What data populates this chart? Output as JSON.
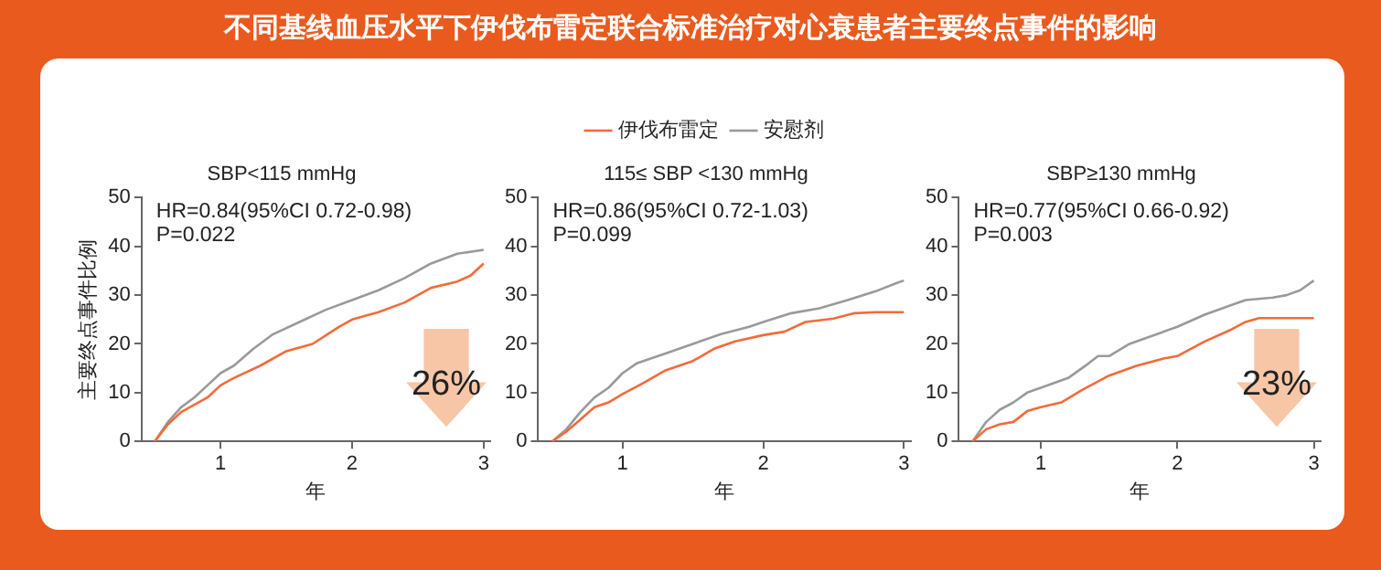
{
  "chart_data": [
    {
      "type": "line",
      "title": "不同基线血压水平下伊伐布雷定联合标准治疗对心衰患者主要终点事件的影响",
      "subtitle": "SBP<115 mmHg",
      "xlabel": "年",
      "ylabel": "主要终点事件比例",
      "xlim": [
        0.4,
        3.05
      ],
      "xticks": [
        1,
        2,
        3
      ],
      "ylim": [
        0,
        50
      ],
      "yticks": [
        0,
        10,
        20,
        30,
        40,
        50
      ],
      "grid": false,
      "legend": false,
      "marker": "none",
      "line_style": "solid",
      "annotations": [
        "HR=0.84(95%CI 0.72-0.98)",
        "P=0.022",
        "26%"
      ],
      "series": [
        {
          "color": "#f26b3a",
          "x": [
            0.5,
            0.6,
            0.7,
            0.8,
            0.9,
            1.0,
            1.1,
            1.3,
            1.5,
            1.7,
            1.9,
            2.0,
            2.2,
            2.4,
            2.6,
            2.8,
            2.9,
            3.0
          ],
          "values": [
            0,
            3.5,
            6,
            7.5,
            9,
            11.5,
            13,
            15.5,
            18.5,
            20,
            23.5,
            25,
            26.5,
            28.5,
            31.5,
            32.8,
            34,
            36.5
          ]
        },
        {
          "color": "#9a9a9a",
          "x": [
            0.5,
            0.6,
            0.7,
            0.8,
            0.9,
            1.0,
            1.1,
            1.25,
            1.4,
            1.6,
            1.8,
            2.0,
            2.2,
            2.4,
            2.5,
            2.6,
            2.8,
            3.0
          ],
          "values": [
            0,
            4,
            7,
            9,
            11.5,
            14,
            15.5,
            19,
            22,
            24.5,
            27,
            29,
            31,
            33.5,
            35,
            36.5,
            38.5,
            39.3
          ]
        }
      ]
    },
    {
      "type": "line",
      "subtitle": "115≤ SBP <130 mmHg",
      "xlabel": "年",
      "xlim": [
        0.4,
        3.05
      ],
      "xticks": [
        1,
        2,
        3
      ],
      "ylim": [
        0,
        50
      ],
      "yticks": [
        0,
        10,
        20,
        30,
        40,
        50
      ],
      "grid": false,
      "legend": "top",
      "marker": "none",
      "line_style": "solid",
      "annotations": [
        "HR=0.86(95%CI 0.72-1.03)",
        "P=0.099"
      ],
      "series": [
        {
          "name": "伊伐布雷定",
          "color": "#f26b3a",
          "x": [
            0.5,
            0.6,
            0.7,
            0.8,
            0.9,
            1.0,
            1.15,
            1.3,
            1.5,
            1.65,
            1.8,
            2.0,
            2.15,
            2.3,
            2.5,
            2.65,
            2.8,
            3.0
          ],
          "values": [
            0,
            2,
            4.5,
            7,
            8,
            9.7,
            12,
            14.5,
            16.5,
            19,
            20.5,
            21.8,
            22.5,
            24.5,
            25.2,
            26.3,
            26.5,
            26.5
          ]
        },
        {
          "name": "安慰剂",
          "color": "#9a9a9a",
          "x": [
            0.5,
            0.6,
            0.7,
            0.8,
            0.9,
            1.0,
            1.1,
            1.3,
            1.5,
            1.7,
            1.9,
            2.0,
            2.2,
            2.4,
            2.6,
            2.8,
            2.95,
            3.0
          ],
          "values": [
            0,
            2.5,
            6,
            9,
            11,
            14,
            16,
            18,
            20,
            22,
            23.5,
            24.5,
            26.3,
            27.3,
            29,
            30.8,
            32.5,
            33
          ]
        }
      ]
    },
    {
      "type": "line",
      "subtitle": "SBP≥130 mmHg",
      "xlabel": "年",
      "xlim": [
        0.4,
        3.05
      ],
      "xticks": [
        1,
        2,
        3
      ],
      "ylim": [
        0,
        50
      ],
      "yticks": [
        0,
        10,
        20,
        30,
        40,
        50
      ],
      "grid": false,
      "legend": false,
      "marker": "none",
      "line_style": "solid",
      "annotations": [
        "HR=0.77(95%CI 0.66-0.92)",
        "P=0.003",
        "23%"
      ],
      "series": [
        {
          "color": "#f26b3a",
          "x": [
            0.5,
            0.6,
            0.7,
            0.8,
            0.9,
            1.0,
            1.15,
            1.3,
            1.5,
            1.7,
            1.9,
            2.0,
            2.2,
            2.4,
            2.5,
            2.6,
            3.0
          ],
          "values": [
            0,
            2.5,
            3.5,
            4,
            6.2,
            7,
            8,
            10.5,
            13.5,
            15.5,
            17,
            17.5,
            20.5,
            23,
            24.5,
            25.3,
            25.3
          ]
        },
        {
          "color": "#9a9a9a",
          "x": [
            0.5,
            0.6,
            0.7,
            0.8,
            0.9,
            1.0,
            1.2,
            1.35,
            1.42,
            1.5,
            1.65,
            1.8,
            2.0,
            2.2,
            2.4,
            2.5,
            2.7,
            2.8,
            2.9,
            3.0
          ],
          "values": [
            0,
            4,
            6.5,
            8,
            10,
            11,
            13,
            16,
            17.5,
            17.5,
            20,
            21.5,
            23.5,
            26,
            28,
            29,
            29.5,
            30,
            31,
            33
          ]
        }
      ]
    }
  ]
}
